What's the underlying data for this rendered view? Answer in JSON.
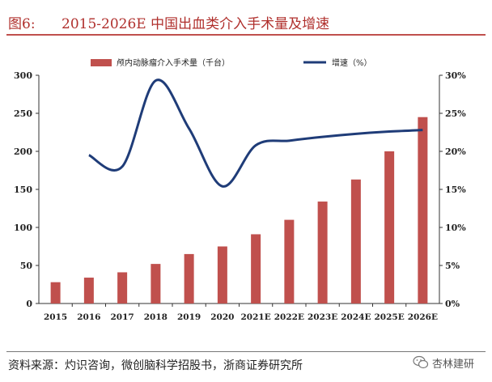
{
  "header": {
    "figure_label": "图6:",
    "title": "2015-2026E 中国出血类介入手术量及增速"
  },
  "footer": {
    "source": "资料来源：灼识咨询，微创脑科学招股书，浙商证券研究所",
    "watermark": "杏林建研",
    "watermark_icon": "wechat-icon"
  },
  "colors": {
    "accent": "#c0504d",
    "bar": "#c0504d",
    "line": "#1f3c78",
    "title_text": "#b0302d"
  },
  "chart_data": {
    "type": "bar+line",
    "title": "2015-2026E 中国出血类介入手术量及增速",
    "categories": [
      "2015",
      "2016",
      "2017",
      "2018",
      "2019",
      "2020",
      "2021E",
      "2022E",
      "2023E",
      "2024E",
      "2025E",
      "2026E"
    ],
    "series": [
      {
        "name": "颅内动脉瘤介入手术量（千台）",
        "type": "bar",
        "axis": "left",
        "values": [
          28,
          34,
          41,
          52,
          65,
          75,
          91,
          110,
          134,
          163,
          200,
          245
        ]
      },
      {
        "name": "增速（%）",
        "type": "line",
        "axis": "right",
        "values": [
          null,
          19.5,
          18.0,
          29.3,
          23.0,
          15.4,
          20.8,
          21.4,
          21.9,
          22.3,
          22.6,
          22.8
        ]
      }
    ],
    "y_left": {
      "min": 0,
      "max": 300,
      "ticks": [
        "0",
        "50",
        "100",
        "150",
        "200",
        "250",
        "300"
      ]
    },
    "y_right": {
      "min": 0,
      "max": 30,
      "ticks": [
        "0%",
        "5%",
        "10%",
        "15%",
        "20%",
        "25%",
        "30%"
      ]
    },
    "legend_position": "top",
    "grid": false
  }
}
